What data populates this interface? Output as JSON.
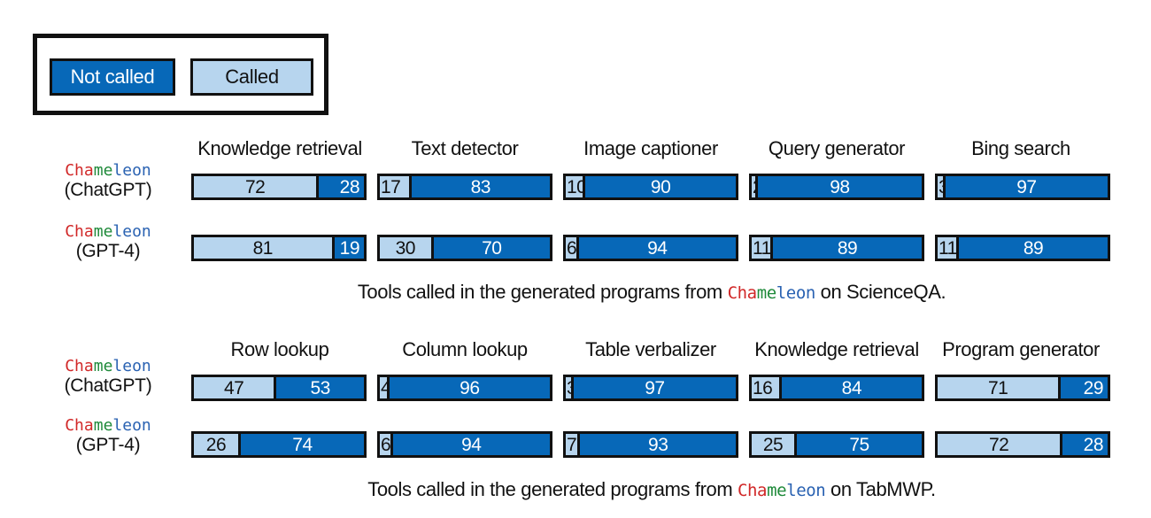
{
  "colors": {
    "not_called": "#0768b8",
    "called": "#b7d5ee",
    "border": "#111111",
    "cham_red": "#d12828",
    "cham_green": "#1f8a3a",
    "cham_blue": "#2a62b2"
  },
  "legend": {
    "not_called": "Not called",
    "called": "Called"
  },
  "chameleon_parts": [
    {
      "text": "Cha",
      "color": "#d12828"
    },
    {
      "text": "me",
      "color": "#1f8a3a"
    },
    {
      "text": "leon",
      "color": "#2a62b2"
    }
  ],
  "chart_data": [
    {
      "type": "bar",
      "orientation": "horizontal-stacked",
      "caption_before": "Tools called in the generated programs from ",
      "caption_after": " on ScienceQA.",
      "categories": [
        "Knowledge retrieval",
        "Text detector",
        "Image captioner",
        "Query generator",
        "Bing search"
      ],
      "rows": [
        {
          "model": "(ChatGPT)",
          "series": [
            {
              "name": "Called",
              "values": [
                72,
                17,
                10,
                2,
                3
              ]
            },
            {
              "name": "Not called",
              "values": [
                28,
                83,
                90,
                98,
                97
              ]
            }
          ]
        },
        {
          "model": "(GPT-4)",
          "series": [
            {
              "name": "Called",
              "values": [
                81,
                30,
                6,
                11,
                11
              ]
            },
            {
              "name": "Not called",
              "values": [
                19,
                70,
                94,
                89,
                89
              ]
            }
          ]
        }
      ]
    },
    {
      "type": "bar",
      "orientation": "horizontal-stacked",
      "caption_before": "Tools called in the generated programs from ",
      "caption_after": " on TabMWP.",
      "categories": [
        "Row lookup",
        "Column lookup",
        "Table verbalizer",
        "Knowledge retrieval",
        "Program generator"
      ],
      "rows": [
        {
          "model": "(ChatGPT)",
          "series": [
            {
              "name": "Called",
              "values": [
                47,
                4,
                3,
                16,
                71
              ]
            },
            {
              "name": "Not called",
              "values": [
                53,
                96,
                97,
                84,
                29
              ]
            }
          ]
        },
        {
          "model": "(GPT-4)",
          "series": [
            {
              "name": "Called",
              "values": [
                26,
                6,
                7,
                25,
                72
              ]
            },
            {
              "name": "Not called",
              "values": [
                74,
                94,
                93,
                75,
                28
              ]
            }
          ]
        }
      ]
    }
  ]
}
